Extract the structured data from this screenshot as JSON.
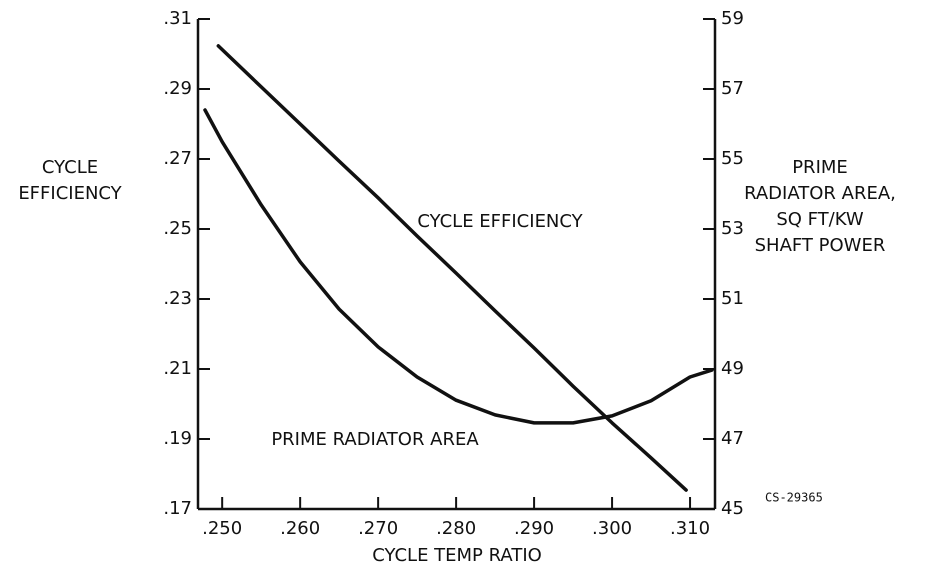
{
  "chart_data": {
    "type": "line",
    "x_label": "CYCLE TEMP RATIO",
    "y_label": [
      "CYCLE",
      "EFFICIENCY"
    ],
    "y2_label": [
      "PRIME",
      "RADIATOR AREA,",
      "SQ FT/KW",
      "SHAFT POWER"
    ],
    "annotations": [
      "CS-29365"
    ],
    "xlim": [
      0.2469,
      0.3132
    ],
    "xticks": [
      {
        "value": 0.25,
        "label": ".250"
      },
      {
        "value": 0.26,
        "label": ".260"
      },
      {
        "value": 0.27,
        "label": ".270"
      },
      {
        "value": 0.28,
        "label": ".280"
      },
      {
        "value": 0.29,
        "label": ".290"
      },
      {
        "value": 0.3,
        "label": ".300"
      },
      {
        "value": 0.31,
        "label": ".310"
      }
    ],
    "ylim": [
      0.17,
      0.31
    ],
    "yticks": [
      {
        "value": 0.17,
        "label": ".17"
      },
      {
        "value": 0.19,
        "label": ".19"
      },
      {
        "value": 0.21,
        "label": ".21"
      },
      {
        "value": 0.23,
        "label": ".23"
      },
      {
        "value": 0.25,
        "label": ".25"
      },
      {
        "value": 0.27,
        "label": ".27"
      },
      {
        "value": 0.29,
        "label": ".29"
      },
      {
        "value": 0.31,
        "label": ".31"
      }
    ],
    "y2lim": [
      45,
      59
    ],
    "y2ticks": [
      45,
      47,
      49,
      51,
      53,
      55,
      57,
      59
    ],
    "grid": false,
    "series": [
      {
        "name": "CYCLE EFFICIENCY",
        "color": "#111111",
        "x": [
          0.2495,
          0.255,
          0.26,
          0.265,
          0.27,
          0.275,
          0.28,
          0.285,
          0.29,
          0.295,
          0.3,
          0.305,
          0.3095
        ],
        "values": [
          0.3023,
          0.2906,
          0.28,
          0.2694,
          0.2589,
          0.248,
          0.2374,
          0.2266,
          0.216,
          0.2051,
          0.1946,
          0.1846,
          0.1754
        ]
      },
      {
        "name": "PRIME RADIATOR AREA",
        "color": "#111111",
        "axis": "y2",
        "x": [
          0.2478,
          0.25,
          0.255,
          0.26,
          0.265,
          0.27,
          0.275,
          0.28,
          0.285,
          0.29,
          0.295,
          0.3,
          0.305,
          0.31,
          0.3128
        ],
        "values": [
          56.4,
          55.49,
          53.69,
          52.06,
          50.71,
          49.63,
          48.77,
          48.11,
          47.69,
          47.46,
          47.46,
          47.66,
          48.09,
          48.77,
          48.97
        ]
      }
    ]
  }
}
